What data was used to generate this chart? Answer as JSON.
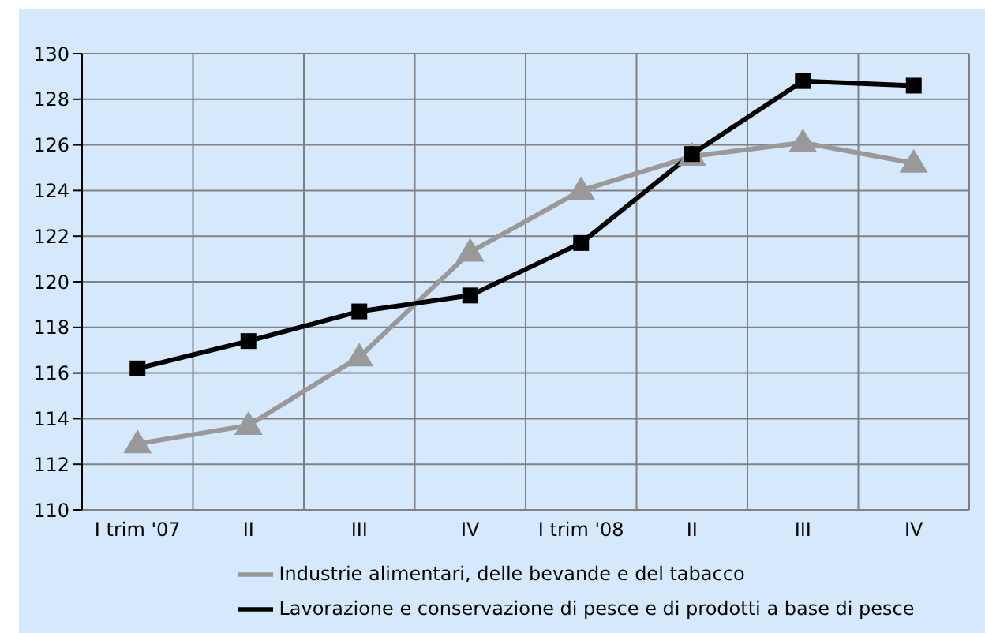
{
  "chart_data": {
    "type": "line",
    "categories": [
      "I trim '07",
      "II",
      "III",
      "IV",
      "I trim '08",
      "II",
      "III",
      "IV"
    ],
    "series": [
      {
        "name": "Industrie alimentari, delle bevande e del tabacco",
        "color": "#999999",
        "marker": "triangle",
        "values": [
          112.9,
          113.7,
          116.7,
          121.3,
          124.0,
          125.5,
          126.1,
          125.2
        ]
      },
      {
        "name": "Lavorazione e conservazione di pesce e di prodotti a base di pesce",
        "color": "#000000",
        "marker": "square",
        "values": [
          116.2,
          117.4,
          118.7,
          119.4,
          121.7,
          125.6,
          128.8,
          128.6
        ]
      }
    ],
    "ylim": [
      110,
      130
    ],
    "yticks": [
      110,
      112,
      114,
      116,
      118,
      120,
      122,
      124,
      126,
      128,
      130
    ],
    "grid": true,
    "legend": "bottom",
    "line_style": "solid"
  }
}
